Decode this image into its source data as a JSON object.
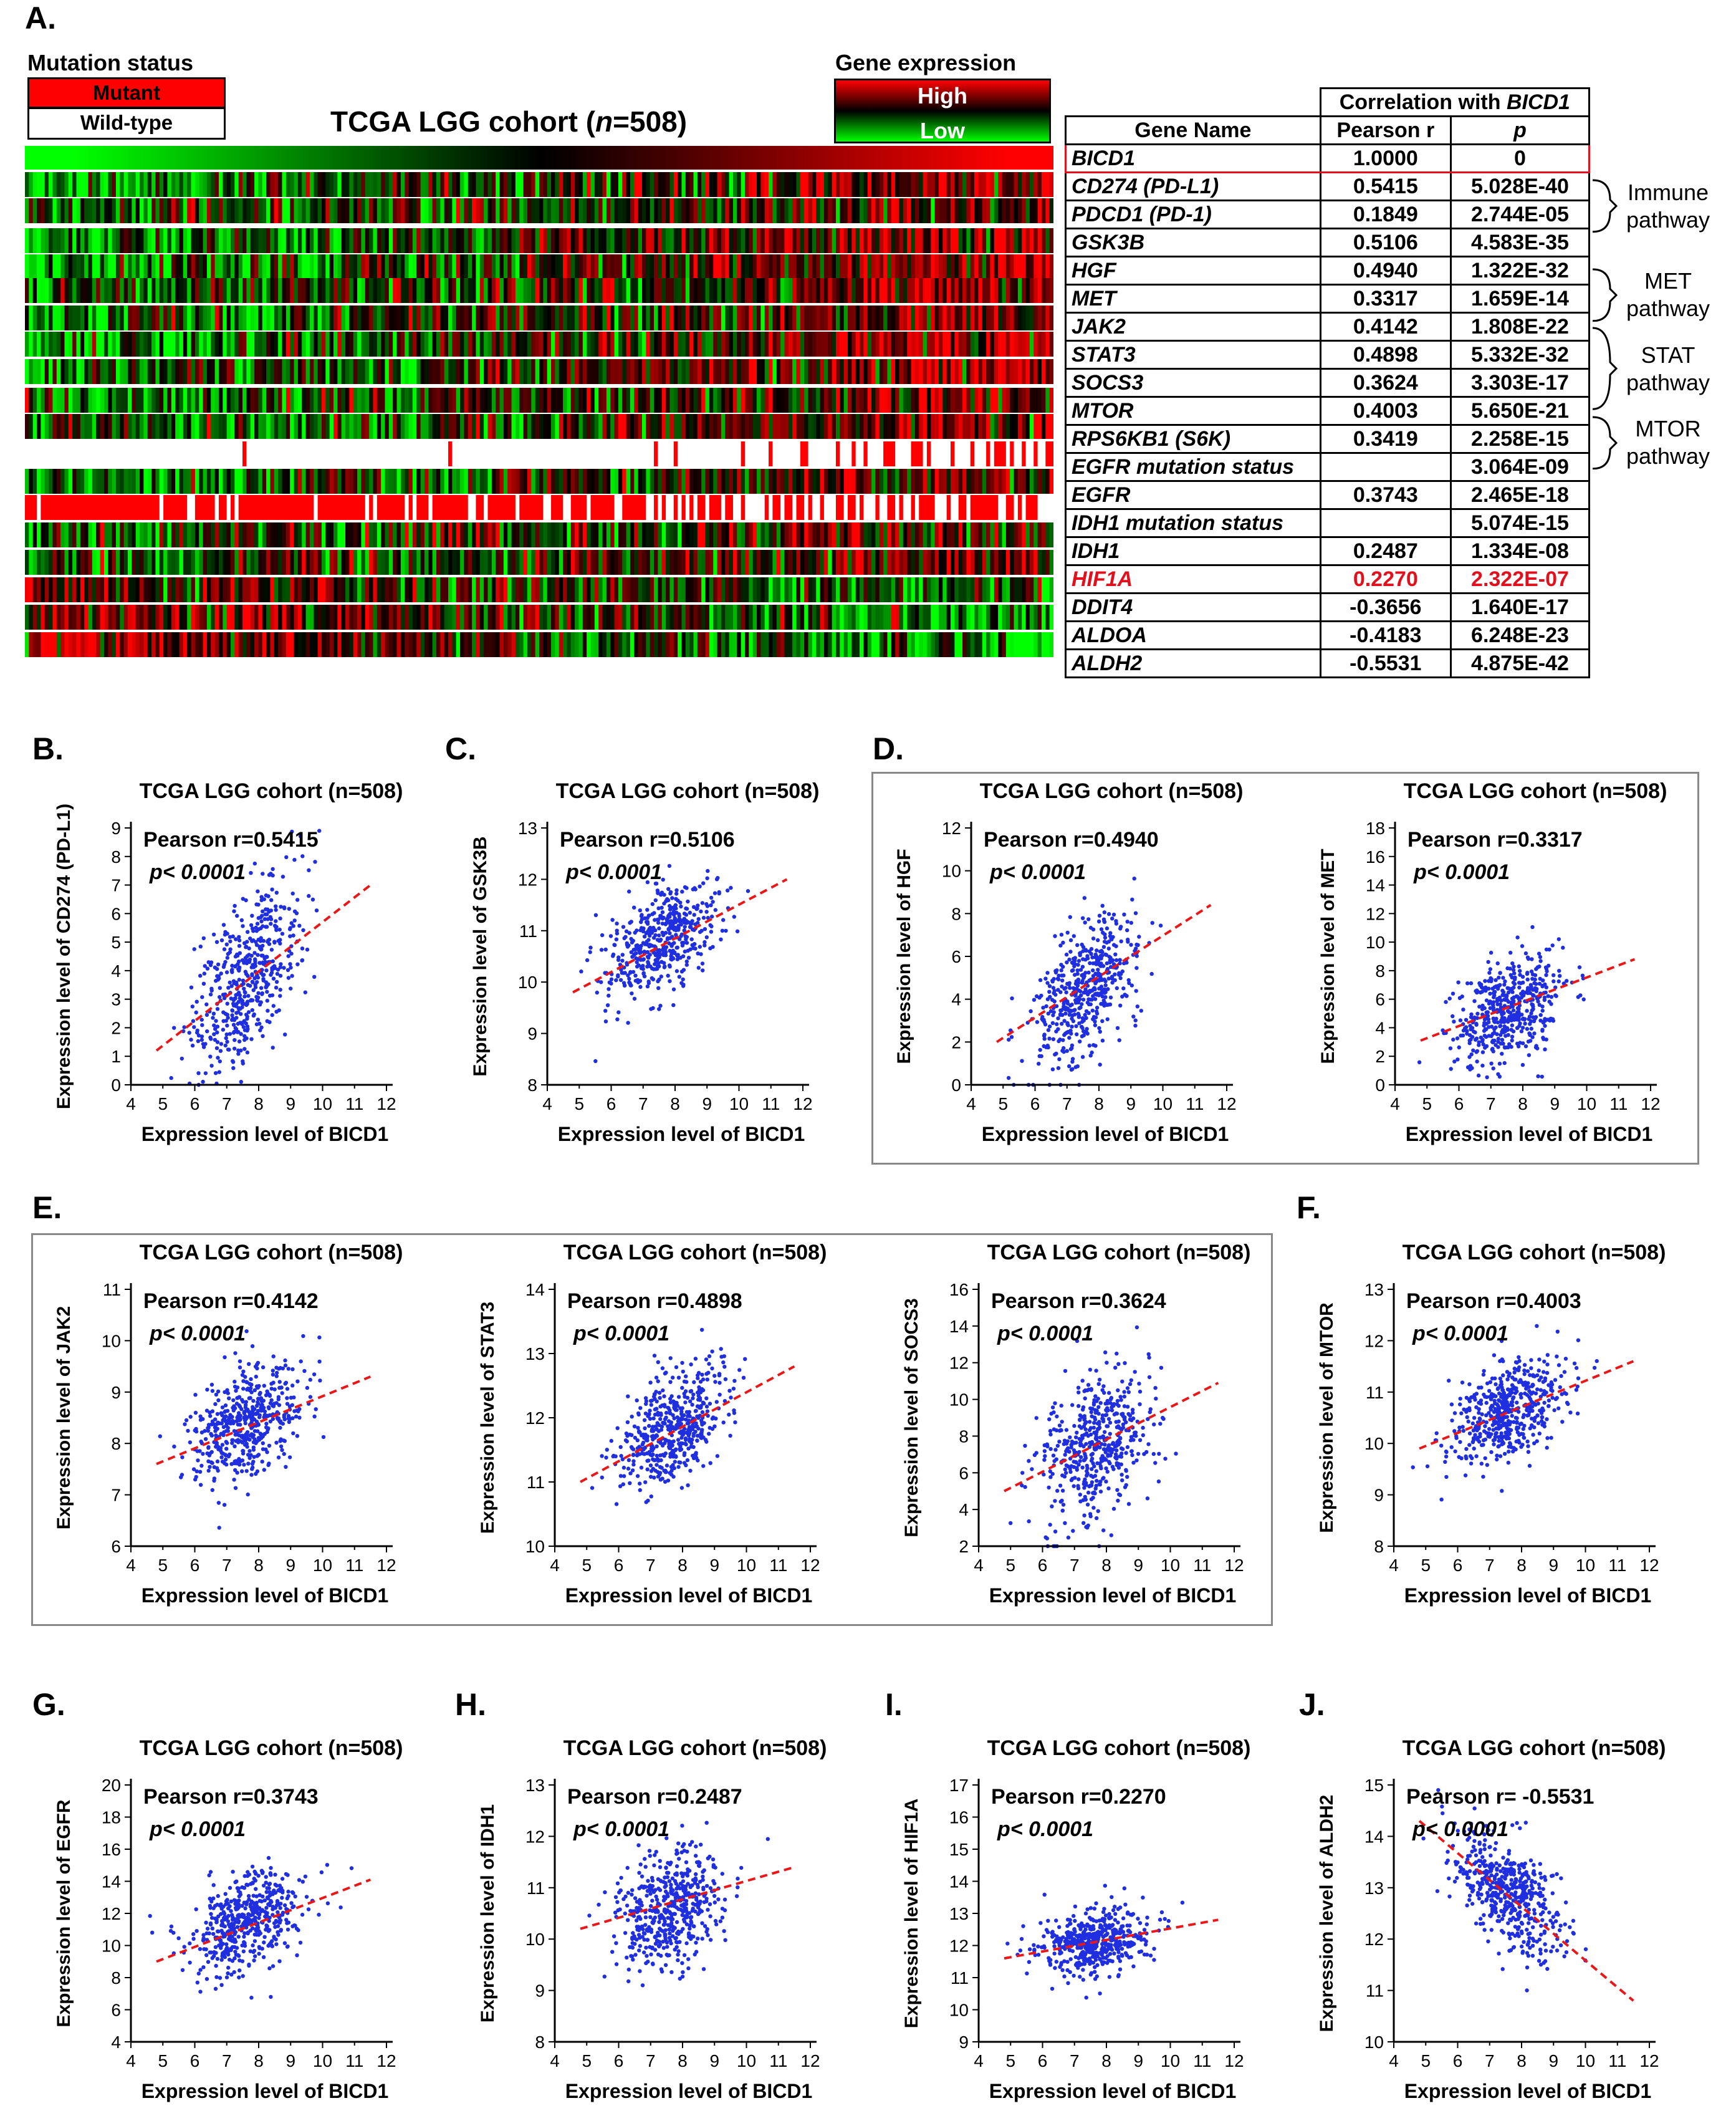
{
  "panel_labels": {
    "A": "A.",
    "B": "B.",
    "C": "C.",
    "D": "D.",
    "E": "E.",
    "F": "F.",
    "G": "G.",
    "H": "H.",
    "I": "I.",
    "J": "J."
  },
  "heatmap": {
    "title": "TCGA LGG cohort (n=508)",
    "mutation_status_label": "Mutation status",
    "mutant_label": "Mutant",
    "wildtype_label": "Wild-type",
    "gene_expression_label": "Gene expression",
    "high_label": "High",
    "low_label": "Low",
    "colors": {
      "high": "#ff0000",
      "mid": "#000000",
      "low": "#00ff00",
      "mutant": "#ff0000",
      "wildtype": "#ffffff"
    }
  },
  "table": {
    "header_group": "Correlation with BICD1",
    "col_gene": "Gene Name",
    "col_r": "Pearson r",
    "col_p": "p",
    "rows": [
      {
        "gene": "BICD1",
        "r": "1.0000",
        "p": "0"
      },
      {
        "gene": "CD274 (PD-L1)",
        "r": "0.5415",
        "p": "5.028E-40"
      },
      {
        "gene": "PDCD1 (PD-1)",
        "r": "0.1849",
        "p": "2.744E-05"
      },
      {
        "gene": "GSK3B",
        "r": "0.5106",
        "p": "4.583E-35"
      },
      {
        "gene": "HGF",
        "r": "0.4940",
        "p": "1.322E-32"
      },
      {
        "gene": "MET",
        "r": "0.3317",
        "p": "1.659E-14"
      },
      {
        "gene": "JAK2",
        "r": "0.4142",
        "p": "1.808E-22"
      },
      {
        "gene": "STAT3",
        "r": "0.4898",
        "p": "5.332E-32"
      },
      {
        "gene": "SOCS3",
        "r": "0.3624",
        "p": "3.303E-17"
      },
      {
        "gene": "MTOR",
        "r": "0.4003",
        "p": "5.650E-21"
      },
      {
        "gene": "RPS6KB1 (S6K)",
        "r": "0.3419",
        "p": "2.258E-15"
      },
      {
        "gene": "EGFR mutation status",
        "r": "",
        "p": "3.064E-09"
      },
      {
        "gene": "EGFR",
        "r": "0.3743",
        "p": "2.465E-18"
      },
      {
        "gene": "IDH1 mutation status",
        "r": "",
        "p": "5.074E-15"
      },
      {
        "gene": "IDH1",
        "r": "0.2487",
        "p": "1.334E-08"
      },
      {
        "gene": "HIF1A",
        "r": "0.2270",
        "p": "2.322E-07"
      },
      {
        "gene": "DDIT4",
        "r": "-0.3656",
        "p": "1.640E-17"
      },
      {
        "gene": "ALDOA",
        "r": "-0.4183",
        "p": "6.248E-23"
      },
      {
        "gene": "ALDH2",
        "r": "-0.5531",
        "p": "4.875E-42"
      }
    ],
    "pathways": [
      {
        "line1": "Immune",
        "line2": "pathway"
      },
      {
        "line1": "MET",
        "line2": "pathway"
      },
      {
        "line1": "STAT",
        "line2": "pathway"
      },
      {
        "line1": "MTOR",
        "line2": "pathway"
      }
    ]
  },
  "chart_data": [
    {
      "type": "scatter",
      "panel": "B",
      "title": "TCGA LGG cohort (n=508)",
      "xlabel": "Expression level of BICD1",
      "ylabel": "Expression level of CD274 (PD-L1)",
      "annotation_r": "Pearson r=0.5415",
      "annotation_p": "p< 0.0001",
      "xlim": [
        4,
        12
      ],
      "ylim": [
        0,
        9
      ],
      "yticks": [
        0,
        1,
        2,
        3,
        4,
        5,
        6,
        7,
        8,
        9
      ],
      "r": 0.5415,
      "x_center": 7.6,
      "x_sd": 0.85,
      "y_center": 3.8,
      "y_sd": 1.6,
      "fit": [
        [
          4.8,
          1.2
        ],
        [
          11.5,
          7.0
        ]
      ],
      "points_count": 508
    },
    {
      "type": "scatter",
      "panel": "C",
      "title": "TCGA LGG cohort (n=508)",
      "xlabel": "Expression level of BICD1",
      "ylabel": "Expression level of GSK3B",
      "annotation_r": "Pearson r=0.5106",
      "annotation_p": "p< 0.0001",
      "xlim": [
        4,
        12
      ],
      "ylim": [
        8,
        13
      ],
      "yticks": [
        8,
        9,
        10,
        11,
        12,
        13
      ],
      "r": 0.5106,
      "x_center": 7.6,
      "x_sd": 0.85,
      "y_center": 10.85,
      "y_sd": 0.55,
      "fit": [
        [
          4.8,
          9.8
        ],
        [
          11.5,
          12.0
        ]
      ],
      "points_count": 508
    },
    {
      "type": "scatter",
      "panel": "D1",
      "title": "TCGA LGG cohort (n=508)",
      "xlabel": "Expression level of BICD1",
      "ylabel": "Expression level of HGF",
      "annotation_r": "Pearson r=0.4940",
      "annotation_p": "p< 0.0001",
      "xlim": [
        4,
        12
      ],
      "ylim": [
        0,
        12
      ],
      "yticks": [
        0,
        2,
        4,
        6,
        8,
        10,
        12
      ],
      "r": 0.494,
      "x_center": 7.6,
      "x_sd": 0.85,
      "y_center": 4.5,
      "y_sd": 1.8,
      "fit": [
        [
          4.8,
          2.0
        ],
        [
          11.5,
          8.4
        ]
      ],
      "points_count": 508
    },
    {
      "type": "scatter",
      "panel": "D2",
      "title": "TCGA LGG cohort (n=508)",
      "xlabel": "Expression level of BICD1",
      "ylabel": "Expression level of MET",
      "annotation_r": "Pearson r=0.3317",
      "annotation_p": "p< 0.0001",
      "xlim": [
        4,
        12
      ],
      "ylim": [
        0,
        18
      ],
      "yticks": [
        0,
        2,
        4,
        6,
        8,
        10,
        12,
        14,
        16,
        18
      ],
      "r": 0.3317,
      "x_center": 7.6,
      "x_sd": 0.85,
      "y_center": 5.3,
      "y_sd": 1.9,
      "fit": [
        [
          4.8,
          3.1
        ],
        [
          11.5,
          8.8
        ]
      ],
      "points_count": 508
    },
    {
      "type": "scatter",
      "panel": "E1",
      "title": "TCGA LGG cohort (n=508)",
      "xlabel": "Expression level of BICD1",
      "ylabel": "Expression level of JAK2",
      "annotation_r": "Pearson r=0.4142",
      "annotation_p": "p< 0.0001",
      "xlim": [
        4,
        12
      ],
      "ylim": [
        6,
        11
      ],
      "yticks": [
        6,
        7,
        8,
        9,
        10,
        11
      ],
      "r": 0.4142,
      "x_center": 7.6,
      "x_sd": 0.85,
      "y_center": 8.4,
      "y_sd": 0.55,
      "fit": [
        [
          4.8,
          7.6
        ],
        [
          11.5,
          9.3
        ]
      ],
      "points_count": 508
    },
    {
      "type": "scatter",
      "panel": "E2",
      "title": "TCGA LGG cohort (n=508)",
      "xlabel": "Expression level of BICD1",
      "ylabel": "Expression level of STAT3",
      "annotation_r": "Pearson r=0.4898",
      "annotation_p": "p< 0.0001",
      "xlim": [
        4,
        12
      ],
      "ylim": [
        10,
        14
      ],
      "yticks": [
        10,
        11,
        12,
        13,
        14
      ],
      "r": 0.4898,
      "x_center": 7.6,
      "x_sd": 0.85,
      "y_center": 11.8,
      "y_sd": 0.45,
      "fit": [
        [
          4.8,
          11.0
        ],
        [
          11.5,
          12.8
        ]
      ],
      "points_count": 508
    },
    {
      "type": "scatter",
      "panel": "E3",
      "title": "TCGA LGG cohort (n=508)",
      "xlabel": "Expression level of BICD1",
      "ylabel": "Expression level of SOCS3",
      "annotation_r": "Pearson r=0.3624",
      "annotation_p": "p< 0.0001",
      "xlim": [
        4,
        12
      ],
      "ylim": [
        2,
        16
      ],
      "yticks": [
        2,
        4,
        6,
        8,
        10,
        12,
        14,
        16
      ],
      "r": 0.3624,
      "x_center": 7.6,
      "x_sd": 0.85,
      "y_center": 7.3,
      "y_sd": 2.0,
      "fit": [
        [
          4.8,
          5.0
        ],
        [
          11.5,
          10.9
        ]
      ],
      "points_count": 508
    },
    {
      "type": "scatter",
      "panel": "F",
      "title": "TCGA LGG cohort (n=508)",
      "xlabel": "Expression level of BICD1",
      "ylabel": "Expression level of MTOR",
      "annotation_r": "Pearson r=0.4003",
      "annotation_p": "p< 0.0001",
      "xlim": [
        4,
        12
      ],
      "ylim": [
        8,
        13
      ],
      "yticks": [
        8,
        9,
        10,
        11,
        12,
        13
      ],
      "r": 0.4003,
      "x_center": 7.6,
      "x_sd": 0.85,
      "y_center": 10.6,
      "y_sd": 0.5,
      "fit": [
        [
          4.8,
          9.9
        ],
        [
          11.5,
          11.6
        ]
      ],
      "points_count": 508
    },
    {
      "type": "scatter",
      "panel": "G",
      "title": "TCGA LGG cohort (n=508)",
      "xlabel": "Expression level of BICD1",
      "ylabel": "Expression level of EGFR",
      "annotation_r": "Pearson r=0.3743",
      "annotation_p": "p< 0.0001",
      "xlim": [
        4,
        12
      ],
      "ylim": [
        4,
        20
      ],
      "yticks": [
        4,
        6,
        8,
        10,
        12,
        14,
        16,
        18,
        20
      ],
      "r": 0.3743,
      "x_center": 7.6,
      "x_sd": 0.85,
      "y_center": 11.4,
      "y_sd": 1.6,
      "fit": [
        [
          4.8,
          9.0
        ],
        [
          11.5,
          14.1
        ]
      ],
      "points_count": 508
    },
    {
      "type": "scatter",
      "panel": "H",
      "title": "TCGA LGG cohort (n=508)",
      "xlabel": "Expression level of BICD1",
      "ylabel": "Expression level of IDH1",
      "annotation_r": "Pearson r=0.2487",
      "annotation_p": "p< 0.0001",
      "xlim": [
        4,
        12
      ],
      "ylim": [
        8,
        13
      ],
      "yticks": [
        8,
        9,
        10,
        11,
        12,
        13
      ],
      "r": 0.2487,
      "x_center": 7.6,
      "x_sd": 0.85,
      "y_center": 10.6,
      "y_sd": 0.6,
      "fit": [
        [
          4.8,
          10.2
        ],
        [
          11.5,
          11.4
        ]
      ],
      "points_count": 508
    },
    {
      "type": "scatter",
      "panel": "I",
      "title": "TCGA LGG cohort (n=508)",
      "xlabel": "Expression level of BICD1",
      "ylabel": "Expression level of HIF1A",
      "annotation_r": "Pearson r=0.2270",
      "annotation_p": "p< 0.0001",
      "xlim": [
        4,
        12
      ],
      "ylim": [
        9,
        17
      ],
      "yticks": [
        9,
        10,
        11,
        12,
        13,
        14,
        15,
        16,
        17
      ],
      "r": 0.227,
      "x_center": 7.6,
      "x_sd": 0.85,
      "y_center": 12.1,
      "y_sd": 0.5,
      "fit": [
        [
          4.8,
          11.6
        ],
        [
          11.5,
          12.8
        ]
      ],
      "points_count": 508
    },
    {
      "type": "scatter",
      "panel": "J",
      "title": "TCGA LGG cohort (n=508)",
      "xlabel": "Expression level of BICD1",
      "ylabel": "Expression level of ALDH2",
      "annotation_r": "Pearson r= -0.5531",
      "annotation_p": "p< 0.0001",
      "xlim": [
        4,
        12
      ],
      "ylim": [
        10,
        15
      ],
      "yticks": [
        10,
        11,
        12,
        13,
        14,
        15
      ],
      "r": -0.5531,
      "x_center": 7.6,
      "x_sd": 0.85,
      "y_center": 12.9,
      "y_sd": 0.6,
      "fit": [
        [
          4.8,
          14.3
        ],
        [
          11.5,
          10.8
        ]
      ],
      "points_count": 508
    }
  ]
}
